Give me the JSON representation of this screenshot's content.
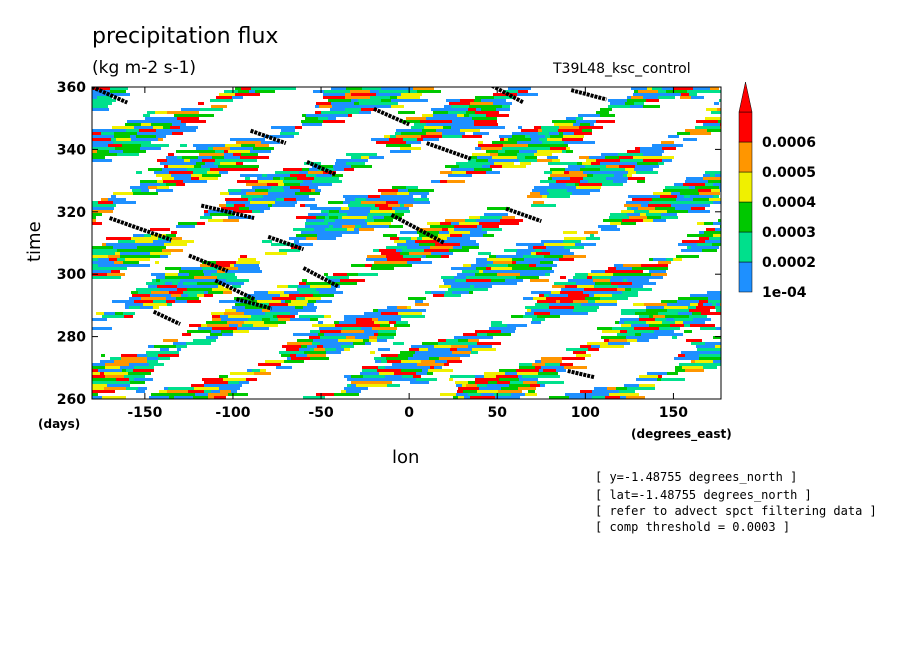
{
  "chart_data": {
    "type": "heatmap",
    "title": "precipitation flux",
    "units": "(kg m-2 s-1)",
    "experiment": "T39L48_ksc_control",
    "xlabel": "lon",
    "ylabel": "time",
    "x_units": "(degrees_east)",
    "y_units": "(days)",
    "xlim": [
      -180,
      177
    ],
    "ylim": [
      260,
      360
    ],
    "x_ticks": [
      -150,
      -100,
      -50,
      0,
      50,
      100,
      150
    ],
    "y_ticks": [
      260,
      280,
      300,
      320,
      340,
      360
    ],
    "x_tick_labels": [
      "-150",
      "-100",
      "-50",
      "0",
      "50",
      "100",
      "150"
    ],
    "y_tick_labels": [
      "260",
      "280",
      "300",
      "320",
      "340",
      "360"
    ],
    "colorbar": {
      "levels": [
        "1e-04",
        "0.0002",
        "0.0003",
        "0.0004",
        "0.0005",
        "0.0006"
      ],
      "colors": [
        "#1e90ff",
        "#00e08c",
        "#00c800",
        "#f0f000",
        "#ff9600",
        "#ff0000"
      ],
      "extend": "max"
    },
    "feature_tracks": [
      {
        "lon": [
          -180,
          -160
        ],
        "time": [
          360,
          355
        ]
      },
      {
        "lon": [
          -170,
          -135
        ],
        "time": [
          318,
          311
        ]
      },
      {
        "lon": [
          -145,
          -130
        ],
        "time": [
          288,
          284
        ]
      },
      {
        "lon": [
          -125,
          -103
        ],
        "time": [
          306,
          301
        ]
      },
      {
        "lon": [
          -110,
          -88
        ],
        "time": [
          298,
          292
        ]
      },
      {
        "lon": [
          -98,
          -78
        ],
        "time": [
          292,
          289
        ]
      },
      {
        "lon": [
          -118,
          -88
        ],
        "time": [
          322,
          318
        ]
      },
      {
        "lon": [
          -90,
          -70
        ],
        "time": [
          346,
          342
        ]
      },
      {
        "lon": [
          -80,
          -60
        ],
        "time": [
          312,
          308
        ]
      },
      {
        "lon": [
          -60,
          -40
        ],
        "time": [
          302,
          296
        ]
      },
      {
        "lon": [
          -58,
          -42
        ],
        "time": [
          336,
          332
        ]
      },
      {
        "lon": [
          -20,
          0
        ],
        "time": [
          353,
          348
        ]
      },
      {
        "lon": [
          -10,
          20
        ],
        "time": [
          319,
          310
        ]
      },
      {
        "lon": [
          10,
          35
        ],
        "time": [
          342,
          337
        ]
      },
      {
        "lon": [
          45,
          65
        ],
        "time": [
          361,
          355
        ]
      },
      {
        "lon": [
          55,
          75
        ],
        "time": [
          321,
          317
        ]
      },
      {
        "lon": [
          90,
          105
        ],
        "time": [
          269,
          267
        ]
      },
      {
        "lon": [
          92,
          112
        ],
        "time": [
          359,
          356
        ]
      }
    ],
    "annotations": [
      "[ y=-1.48755 degrees_north ]",
      "[ lat=-1.48755 degrees_north ]",
      "[ refer to advect spct filtering data ]",
      "[ comp threshold = 0.0003 ]"
    ]
  }
}
